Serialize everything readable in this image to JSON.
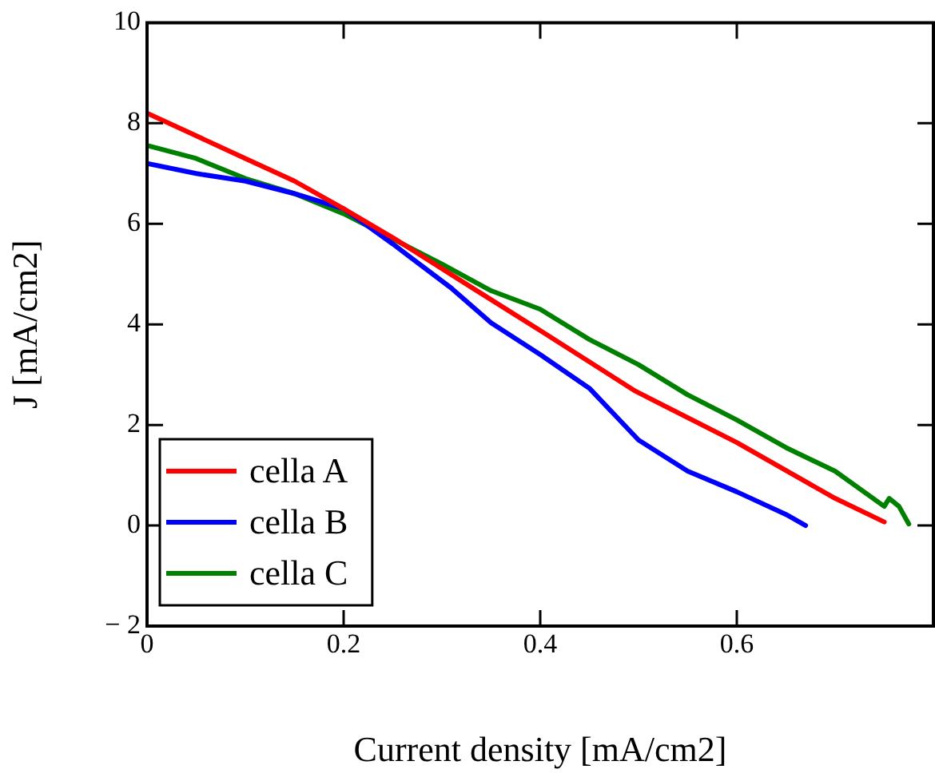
{
  "chart_data": {
    "type": "line",
    "xlabel": "Current density [mA/cm2]",
    "ylabel": "J [mA/cm2]",
    "xlim": [
      0,
      0.8
    ],
    "xticks": [
      0,
      0.2,
      0.4,
      0.6
    ],
    "ylim": [
      -2,
      10
    ],
    "yticks": [
      {
        "value": -2,
        "label": "− 2"
      },
      0,
      2,
      4,
      6,
      8,
      10
    ],
    "grid": false,
    "legend": "bottom left",
    "marker": "none",
    "line_style": "solid",
    "series": [
      {
        "name": "cella A",
        "color": "#ff0000",
        "x": [
          0,
          0.05,
          0.1,
          0.15,
          0.2,
          0.252,
          0.333,
          0.403,
          0.497,
          0.6,
          0.7,
          0.75
        ],
        "values": [
          8.2,
          7.75,
          7.3,
          6.85,
          6.3,
          5.7,
          4.7,
          3.84,
          2.67,
          1.65,
          0.54,
          0.07
        ]
      },
      {
        "name": "cella B",
        "color": "#0000ff",
        "x": [
          0,
          0.05,
          0.1,
          0.15,
          0.2,
          0.25,
          0.309,
          0.35,
          0.4,
          0.45,
          0.5,
          0.55,
          0.6,
          0.65,
          0.67
        ],
        "values": [
          7.2,
          7.0,
          6.85,
          6.6,
          6.3,
          5.6,
          4.73,
          4.03,
          3.4,
          2.73,
          1.7,
          1.08,
          0.67,
          0.22,
          0
        ]
      },
      {
        "name": "cella C",
        "color": "#008000",
        "x": [
          0,
          0.05,
          0.1,
          0.15,
          0.2,
          0.25,
          0.3,
          0.35,
          0.4,
          0.45,
          0.5,
          0.55,
          0.6,
          0.65,
          0.7,
          0.75,
          0.755,
          0.765,
          0.775
        ],
        "values": [
          7.56,
          7.3,
          6.9,
          6.6,
          6.2,
          5.7,
          5.2,
          4.67,
          4.3,
          3.7,
          3.2,
          2.6,
          2.1,
          1.55,
          1.08,
          0.38,
          0.54,
          0.38,
          0.03
        ]
      }
    ]
  }
}
